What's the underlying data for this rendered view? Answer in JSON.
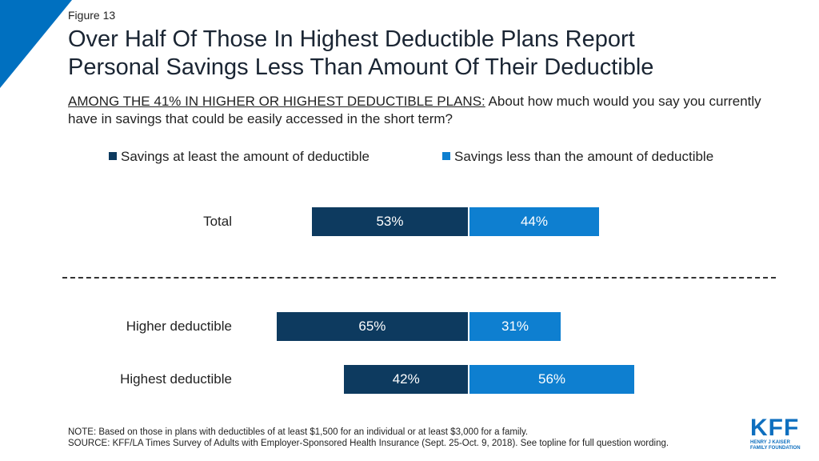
{
  "figure_label": "Figure 13",
  "title_line1": "Over Half Of Those In Highest Deductible Plans Report",
  "title_line2": "Personal Savings Less Than Amount Of Their Deductible",
  "question_prefix": "AMONG THE 41% IN HIGHER OR HIGHEST DEDUCTIBLE PLANS:",
  "question_text": " About how much would you say you currently have in savings that could be easily accessed in the short term?",
  "colors": {
    "accent": "#0070c0",
    "dark_series": "#0d3a5f",
    "light_series": "#0e7fd0",
    "corner": "#0070c0"
  },
  "chart_data": {
    "type": "bar",
    "orientation": "horizontal",
    "layout": "diverging",
    "categories": [
      "Total",
      "Higher deductible",
      "Highest deductible"
    ],
    "series": [
      {
        "name": "Savings at least the amount of deductible",
        "values": [
          53,
          65,
          42
        ],
        "labels": [
          "53%",
          "65%",
          "42%"
        ]
      },
      {
        "name": "Savings less than the amount of deductible",
        "values": [
          44,
          31,
          56
        ],
        "labels": [
          "44%",
          "31%",
          "56%"
        ]
      }
    ],
    "legend_position": "top",
    "grid": false
  },
  "note": "NOTE: Based on those in plans with deductibles of at least $1,500 for an individual or at least $3,000 for a family.",
  "source": "SOURCE: KFF/LA Times Survey of Adults with Employer-Sponsored Health Insurance (Sept. 25-Oct. 9, 2018). See topline for full question wording.",
  "logo": {
    "main": "KFF",
    "line1": "HENRY J KAISER",
    "line2": "FAMILY FOUNDATION"
  }
}
